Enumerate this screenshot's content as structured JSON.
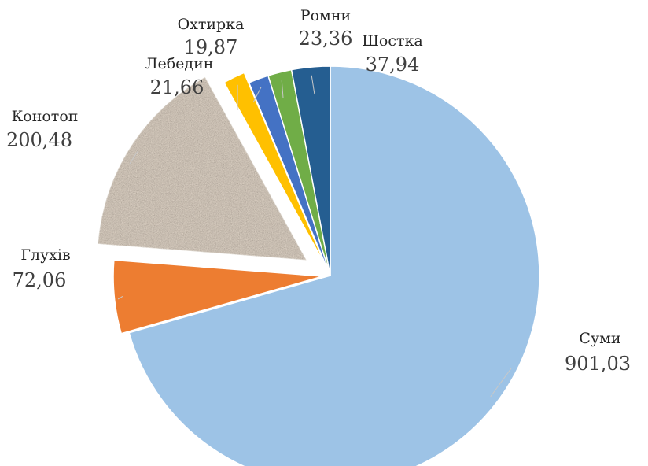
{
  "chart_data": {
    "type": "pie",
    "title": "",
    "slices": [
      {
        "label": "Суми",
        "value": 901.03,
        "value_label": "901,03",
        "color": "#9dc3e6"
      },
      {
        "label": "Глухів",
        "value": 72.06,
        "value_label": "72,06",
        "color": "#ed7d31"
      },
      {
        "label": "Конотоп",
        "value": 200.48,
        "value_label": "200,48",
        "color": "#a59383",
        "texture": "granite"
      },
      {
        "label": "Лебедин",
        "value": 21.66,
        "value_label": "21,66",
        "color": "#ffc000"
      },
      {
        "label": "Охтирка",
        "value": 19.87,
        "value_label": "19,87",
        "color": "#4472c4"
      },
      {
        "label": "Ромни",
        "value": 23.36,
        "value_label": "23,36",
        "color": "#70ad47"
      },
      {
        "label": "Шостка",
        "value": 37.94,
        "value_label": "37,94",
        "color": "#255e91"
      }
    ],
    "start_angle_deg": 0,
    "direction": "clockwise",
    "exploded": [
      "Глухів",
      "Конотоп",
      "Лебедин"
    ],
    "legend": "none",
    "data_labels": "outside-with-leader-lines"
  }
}
